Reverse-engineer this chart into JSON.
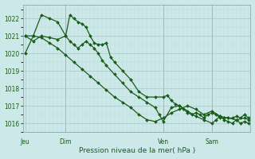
{
  "background_color": "#cce8e8",
  "grid_major_color": "#aac8c8",
  "grid_minor_color": "#bbdada",
  "line_color": "#1a5c1a",
  "marker_color": "#1a5c1a",
  "title": "Pression niveau de la mer( hPa )",
  "ylim": [
    1015.5,
    1022.8
  ],
  "yticks": [
    1016,
    1017,
    1018,
    1019,
    1020,
    1021,
    1022
  ],
  "day_labels": [
    "Jeu",
    "Dim",
    "Ven",
    "Sam"
  ],
  "day_positions": [
    0,
    10,
    34,
    46
  ],
  "vline_positions": [
    10,
    34,
    46
  ],
  "n_points": 56,
  "series1_x": [
    0,
    2,
    4,
    6,
    8,
    10,
    11,
    12,
    13,
    14,
    15,
    16,
    17,
    18,
    19,
    20,
    21,
    22,
    24,
    26,
    28,
    30,
    32,
    34,
    35,
    36,
    37,
    38,
    39,
    40,
    41,
    42,
    43,
    44,
    45,
    46,
    47,
    48,
    49,
    50,
    51,
    52,
    53,
    54,
    55
  ],
  "series1_y": [
    1020.0,
    1021.0,
    1022.2,
    1022.0,
    1021.8,
    1021.0,
    1022.2,
    1022.0,
    1021.8,
    1021.7,
    1021.5,
    1021.0,
    1020.6,
    1020.5,
    1020.5,
    1020.6,
    1019.8,
    1019.5,
    1019.0,
    1018.5,
    1017.8,
    1017.5,
    1017.5,
    1017.5,
    1017.6,
    1017.3,
    1017.1,
    1017.0,
    1016.8,
    1016.6,
    1016.5,
    1016.6,
    1016.5,
    1016.3,
    1016.5,
    1016.6,
    1016.5,
    1016.3,
    1016.3,
    1016.3,
    1016.3,
    1016.4,
    1016.3,
    1016.5,
    1016.3
  ],
  "series2_x": [
    0,
    2,
    4,
    6,
    8,
    10,
    11,
    12,
    13,
    14,
    15,
    16,
    17,
    18,
    19,
    20,
    22,
    24,
    26,
    28,
    30,
    32,
    33,
    34,
    36,
    38,
    40,
    42,
    44,
    46,
    47,
    48,
    49,
    50,
    51,
    52,
    53,
    54,
    55
  ],
  "series2_y": [
    1021.0,
    1020.7,
    1021.0,
    1020.9,
    1020.8,
    1021.0,
    1020.7,
    1020.5,
    1020.3,
    1020.5,
    1020.7,
    1020.5,
    1020.3,
    1020.0,
    1019.6,
    1019.3,
    1018.8,
    1018.3,
    1017.8,
    1017.5,
    1017.2,
    1016.9,
    1016.5,
    1016.1,
    1016.9,
    1017.0,
    1016.7,
    1016.4,
    1016.2,
    1016.0,
    1016.2,
    1016.4,
    1016.2,
    1016.1,
    1016.0,
    1016.2,
    1016.0,
    1016.1,
    1016.0
  ],
  "series3_x": [
    0,
    2,
    4,
    6,
    8,
    10,
    12,
    14,
    16,
    18,
    20,
    22,
    24,
    26,
    28,
    30,
    32,
    34,
    36,
    38,
    40,
    42,
    44,
    46,
    48,
    50,
    52,
    54,
    55
  ],
  "series3_y": [
    1021.0,
    1021.0,
    1020.9,
    1020.6,
    1020.3,
    1019.9,
    1019.5,
    1019.1,
    1018.7,
    1018.3,
    1017.9,
    1017.5,
    1017.2,
    1016.9,
    1016.5,
    1016.2,
    1016.1,
    1016.3,
    1016.6,
    1016.8,
    1017.0,
    1016.8,
    1016.5,
    1016.7,
    1016.4,
    1016.3,
    1016.2,
    1016.3,
    1016.2
  ]
}
